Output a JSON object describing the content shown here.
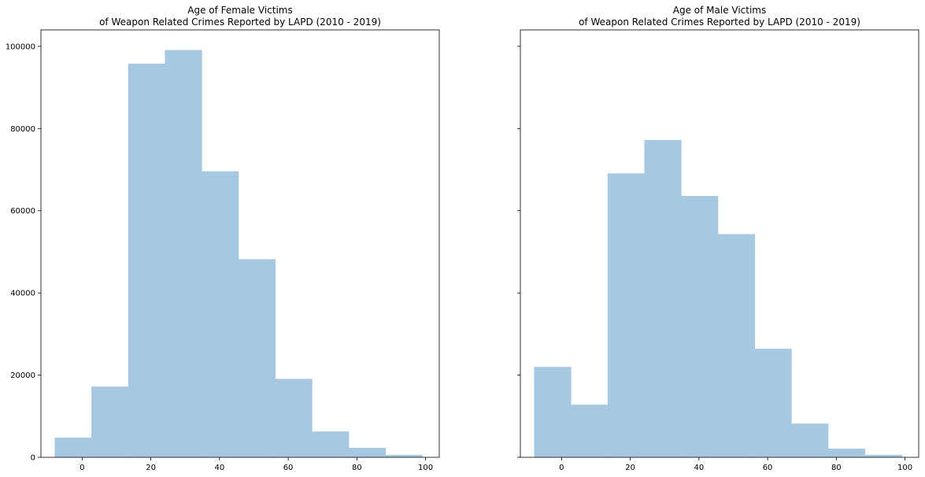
{
  "chart_data": [
    {
      "type": "bar",
      "histogram": true,
      "title_line1": "Age of Female Victims",
      "title_line2": "of Weapon Related Crimes Reported by LAPD (2010 - 2019)",
      "xlabel": "",
      "ylabel": "",
      "xlim": [
        -12,
        104
      ],
      "ylim": [
        0,
        104000
      ],
      "xticks": [
        0,
        20,
        40,
        60,
        80,
        100
      ],
      "yticks": [
        0,
        20000,
        40000,
        60000,
        80000,
        100000
      ],
      "ytick_labels_visible": true,
      "bin_edges": [
        -8,
        2.7,
        13.4,
        24.1,
        34.8,
        45.5,
        56.2,
        66.9,
        77.6,
        88.3,
        99
      ],
      "values": [
        4800,
        17200,
        95800,
        99100,
        69600,
        48200,
        19100,
        6300,
        2300,
        600
      ],
      "color": "#a6c8e0"
    },
    {
      "type": "bar",
      "histogram": true,
      "title_line1": "Age of Male Victims",
      "title_line2": "of Weapon Related Crimes Reported by LAPD (2010 - 2019)",
      "xlabel": "",
      "ylabel": "",
      "xlim": [
        -12,
        104
      ],
      "ylim": [
        0,
        104000
      ],
      "xticks": [
        0,
        20,
        40,
        60,
        80,
        100
      ],
      "yticks": [
        0,
        20000,
        40000,
        60000,
        80000,
        100000
      ],
      "ytick_labels_visible": false,
      "bin_edges": [
        -8,
        2.7,
        13.4,
        24.1,
        34.8,
        45.5,
        56.2,
        66.9,
        77.6,
        88.3,
        99
      ],
      "values": [
        22000,
        12800,
        69100,
        77200,
        63600,
        54300,
        26400,
        8200,
        2100,
        600
      ],
      "color": "#a6c8e0"
    }
  ]
}
